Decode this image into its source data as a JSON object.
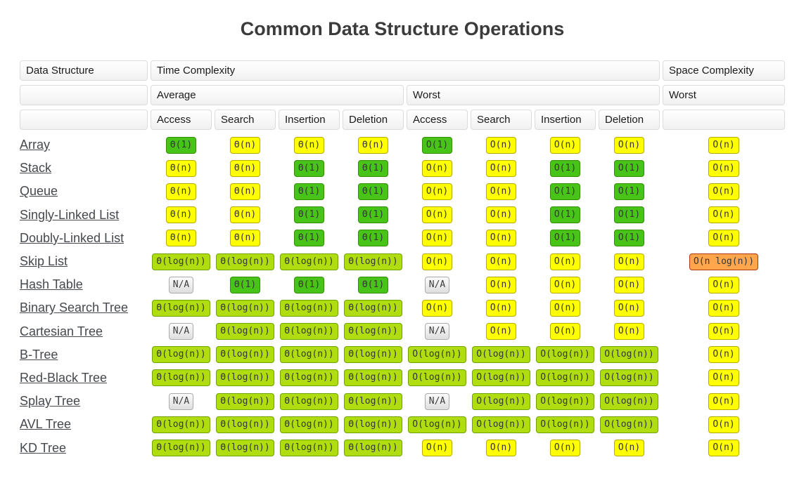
{
  "title": "Common Data Structure Operations",
  "header": {
    "data_structure": "Data Structure",
    "time_complexity": "Time Complexity",
    "space_complexity": "Space Complexity",
    "average": "Average",
    "worst": "Worst",
    "space_worst": "Worst",
    "op_columns": [
      "Access",
      "Search",
      "Insertion",
      "Deletion",
      "Access",
      "Search",
      "Insertion",
      "Deletion"
    ]
  },
  "colors": {
    "green": {
      "bg": "#47C417",
      "border": "#338E06"
    },
    "yellow": {
      "bg": "#FFFF00",
      "border": "#B8A900"
    },
    "yellowgreen": {
      "bg": "#AFDD10",
      "border": "#6FA300"
    },
    "orange": {
      "bg": "#FFA64D",
      "border": "#B03510"
    },
    "gray": {
      "bg": "#E9E9E9",
      "border": "#AAAAAA"
    }
  },
  "rows": [
    {
      "name": "Array",
      "cells": [
        {
          "text": "Θ(1)",
          "level": "green"
        },
        {
          "text": "Θ(n)",
          "level": "yellow"
        },
        {
          "text": "Θ(n)",
          "level": "yellow"
        },
        {
          "text": "Θ(n)",
          "level": "yellow"
        },
        {
          "text": "O(1)",
          "level": "green"
        },
        {
          "text": "O(n)",
          "level": "yellow"
        },
        {
          "text": "O(n)",
          "level": "yellow"
        },
        {
          "text": "O(n)",
          "level": "yellow"
        },
        {
          "text": "O(n)",
          "level": "yellow"
        }
      ]
    },
    {
      "name": "Stack",
      "cells": [
        {
          "text": "Θ(n)",
          "level": "yellow"
        },
        {
          "text": "Θ(n)",
          "level": "yellow"
        },
        {
          "text": "Θ(1)",
          "level": "green"
        },
        {
          "text": "Θ(1)",
          "level": "green"
        },
        {
          "text": "O(n)",
          "level": "yellow"
        },
        {
          "text": "O(n)",
          "level": "yellow"
        },
        {
          "text": "O(1)",
          "level": "green"
        },
        {
          "text": "O(1)",
          "level": "green"
        },
        {
          "text": "O(n)",
          "level": "yellow"
        }
      ]
    },
    {
      "name": "Queue",
      "cells": [
        {
          "text": "Θ(n)",
          "level": "yellow"
        },
        {
          "text": "Θ(n)",
          "level": "yellow"
        },
        {
          "text": "Θ(1)",
          "level": "green"
        },
        {
          "text": "Θ(1)",
          "level": "green"
        },
        {
          "text": "O(n)",
          "level": "yellow"
        },
        {
          "text": "O(n)",
          "level": "yellow"
        },
        {
          "text": "O(1)",
          "level": "green"
        },
        {
          "text": "O(1)",
          "level": "green"
        },
        {
          "text": "O(n)",
          "level": "yellow"
        }
      ]
    },
    {
      "name": "Singly-Linked List",
      "cells": [
        {
          "text": "Θ(n)",
          "level": "yellow"
        },
        {
          "text": "Θ(n)",
          "level": "yellow"
        },
        {
          "text": "Θ(1)",
          "level": "green"
        },
        {
          "text": "Θ(1)",
          "level": "green"
        },
        {
          "text": "O(n)",
          "level": "yellow"
        },
        {
          "text": "O(n)",
          "level": "yellow"
        },
        {
          "text": "O(1)",
          "level": "green"
        },
        {
          "text": "O(1)",
          "level": "green"
        },
        {
          "text": "O(n)",
          "level": "yellow"
        }
      ]
    },
    {
      "name": "Doubly-Linked List",
      "cells": [
        {
          "text": "Θ(n)",
          "level": "yellow"
        },
        {
          "text": "Θ(n)",
          "level": "yellow"
        },
        {
          "text": "Θ(1)",
          "level": "green"
        },
        {
          "text": "Θ(1)",
          "level": "green"
        },
        {
          "text": "O(n)",
          "level": "yellow"
        },
        {
          "text": "O(n)",
          "level": "yellow"
        },
        {
          "text": "O(1)",
          "level": "green"
        },
        {
          "text": "O(1)",
          "level": "green"
        },
        {
          "text": "O(n)",
          "level": "yellow"
        }
      ]
    },
    {
      "name": "Skip List",
      "cells": [
        {
          "text": "Θ(log(n))",
          "level": "yellowgreen"
        },
        {
          "text": "Θ(log(n))",
          "level": "yellowgreen"
        },
        {
          "text": "Θ(log(n))",
          "level": "yellowgreen"
        },
        {
          "text": "Θ(log(n))",
          "level": "yellowgreen"
        },
        {
          "text": "O(n)",
          "level": "yellow"
        },
        {
          "text": "O(n)",
          "level": "yellow"
        },
        {
          "text": "O(n)",
          "level": "yellow"
        },
        {
          "text": "O(n)",
          "level": "yellow"
        },
        {
          "text": "O(n log(n))",
          "level": "orange"
        }
      ]
    },
    {
      "name": "Hash Table",
      "cells": [
        {
          "text": "N/A",
          "level": "gray"
        },
        {
          "text": "Θ(1)",
          "level": "green"
        },
        {
          "text": "Θ(1)",
          "level": "green"
        },
        {
          "text": "Θ(1)",
          "level": "green"
        },
        {
          "text": "N/A",
          "level": "gray"
        },
        {
          "text": "O(n)",
          "level": "yellow"
        },
        {
          "text": "O(n)",
          "level": "yellow"
        },
        {
          "text": "O(n)",
          "level": "yellow"
        },
        {
          "text": "O(n)",
          "level": "yellow"
        }
      ]
    },
    {
      "name": "Binary Search Tree",
      "cells": [
        {
          "text": "Θ(log(n))",
          "level": "yellowgreen"
        },
        {
          "text": "Θ(log(n))",
          "level": "yellowgreen"
        },
        {
          "text": "Θ(log(n))",
          "level": "yellowgreen"
        },
        {
          "text": "Θ(log(n))",
          "level": "yellowgreen"
        },
        {
          "text": "O(n)",
          "level": "yellow"
        },
        {
          "text": "O(n)",
          "level": "yellow"
        },
        {
          "text": "O(n)",
          "level": "yellow"
        },
        {
          "text": "O(n)",
          "level": "yellow"
        },
        {
          "text": "O(n)",
          "level": "yellow"
        }
      ]
    },
    {
      "name": "Cartesian Tree",
      "cells": [
        {
          "text": "N/A",
          "level": "gray"
        },
        {
          "text": "Θ(log(n))",
          "level": "yellowgreen"
        },
        {
          "text": "Θ(log(n))",
          "level": "yellowgreen"
        },
        {
          "text": "Θ(log(n))",
          "level": "yellowgreen"
        },
        {
          "text": "N/A",
          "level": "gray"
        },
        {
          "text": "O(n)",
          "level": "yellow"
        },
        {
          "text": "O(n)",
          "level": "yellow"
        },
        {
          "text": "O(n)",
          "level": "yellow"
        },
        {
          "text": "O(n)",
          "level": "yellow"
        }
      ]
    },
    {
      "name": "B-Tree",
      "cells": [
        {
          "text": "Θ(log(n))",
          "level": "yellowgreen"
        },
        {
          "text": "Θ(log(n))",
          "level": "yellowgreen"
        },
        {
          "text": "Θ(log(n))",
          "level": "yellowgreen"
        },
        {
          "text": "Θ(log(n))",
          "level": "yellowgreen"
        },
        {
          "text": "O(log(n))",
          "level": "yellowgreen"
        },
        {
          "text": "O(log(n))",
          "level": "yellowgreen"
        },
        {
          "text": "O(log(n))",
          "level": "yellowgreen"
        },
        {
          "text": "O(log(n))",
          "level": "yellowgreen"
        },
        {
          "text": "O(n)",
          "level": "yellow"
        }
      ]
    },
    {
      "name": "Red-Black Tree",
      "cells": [
        {
          "text": "Θ(log(n))",
          "level": "yellowgreen"
        },
        {
          "text": "Θ(log(n))",
          "level": "yellowgreen"
        },
        {
          "text": "Θ(log(n))",
          "level": "yellowgreen"
        },
        {
          "text": "Θ(log(n))",
          "level": "yellowgreen"
        },
        {
          "text": "O(log(n))",
          "level": "yellowgreen"
        },
        {
          "text": "O(log(n))",
          "level": "yellowgreen"
        },
        {
          "text": "O(log(n))",
          "level": "yellowgreen"
        },
        {
          "text": "O(log(n))",
          "level": "yellowgreen"
        },
        {
          "text": "O(n)",
          "level": "yellow"
        }
      ]
    },
    {
      "name": "Splay Tree",
      "cells": [
        {
          "text": "N/A",
          "level": "gray"
        },
        {
          "text": "Θ(log(n))",
          "level": "yellowgreen"
        },
        {
          "text": "Θ(log(n))",
          "level": "yellowgreen"
        },
        {
          "text": "Θ(log(n))",
          "level": "yellowgreen"
        },
        {
          "text": "N/A",
          "level": "gray"
        },
        {
          "text": "O(log(n))",
          "level": "yellowgreen"
        },
        {
          "text": "O(log(n))",
          "level": "yellowgreen"
        },
        {
          "text": "O(log(n))",
          "level": "yellowgreen"
        },
        {
          "text": "O(n)",
          "level": "yellow"
        }
      ]
    },
    {
      "name": "AVL Tree",
      "cells": [
        {
          "text": "Θ(log(n))",
          "level": "yellowgreen"
        },
        {
          "text": "Θ(log(n))",
          "level": "yellowgreen"
        },
        {
          "text": "Θ(log(n))",
          "level": "yellowgreen"
        },
        {
          "text": "Θ(log(n))",
          "level": "yellowgreen"
        },
        {
          "text": "O(log(n))",
          "level": "yellowgreen"
        },
        {
          "text": "O(log(n))",
          "level": "yellowgreen"
        },
        {
          "text": "O(log(n))",
          "level": "yellowgreen"
        },
        {
          "text": "O(log(n))",
          "level": "yellowgreen"
        },
        {
          "text": "O(n)",
          "level": "yellow"
        }
      ]
    },
    {
      "name": "KD Tree",
      "cells": [
        {
          "text": "Θ(log(n))",
          "level": "yellowgreen"
        },
        {
          "text": "Θ(log(n))",
          "level": "yellowgreen"
        },
        {
          "text": "Θ(log(n))",
          "level": "yellowgreen"
        },
        {
          "text": "Θ(log(n))",
          "level": "yellowgreen"
        },
        {
          "text": "O(n)",
          "level": "yellow"
        },
        {
          "text": "O(n)",
          "level": "yellow"
        },
        {
          "text": "O(n)",
          "level": "yellow"
        },
        {
          "text": "O(n)",
          "level": "yellow"
        },
        {
          "text": "O(n)",
          "level": "yellow"
        }
      ]
    }
  ]
}
